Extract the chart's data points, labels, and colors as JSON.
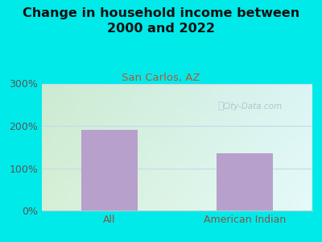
{
  "title": "Change in household income between\n2000 and 2022",
  "subtitle": "San Carlos, AZ",
  "categories": [
    "All",
    "American Indian"
  ],
  "values": [
    190,
    135
  ],
  "bar_color": "#b8a0cc",
  "title_fontsize": 11.5,
  "subtitle_fontsize": 9.5,
  "subtitle_color": "#bb5533",
  "bg_color": "#00eaea",
  "plot_bg_color_tl": "#d8f0d8",
  "plot_bg_color_tr": "#e8f0f8",
  "plot_bg_color_b": "#f8fff8",
  "ylim": [
    0,
    300
  ],
  "yticks": [
    0,
    100,
    200,
    300
  ],
  "ytick_labels": [
    "0%",
    "100%",
    "200%",
    "300%"
  ],
  "watermark": "City-Data.com",
  "watermark_color": "#aabbcc",
  "grid_color": "#c8d8e8",
  "ytick_color": "#555555",
  "xtick_color": "#885544"
}
